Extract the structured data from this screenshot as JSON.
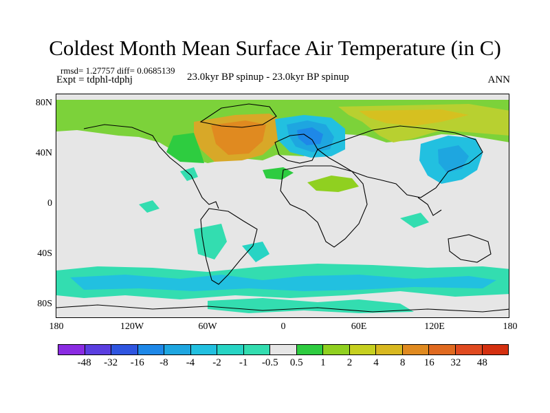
{
  "title": "Coldest Month Mean Surface Air Temperature (in C)",
  "stats": "rmsd= 1.27757 diff= 0.0685139",
  "expt": "Expt = tdphl-tdphj",
  "center_label": "23.0kyr BP spinup - 23.0kyr BP spinup",
  "period": "ANN",
  "lat_labels": [
    "80N",
    "40N",
    "0",
    "40S",
    "80S"
  ],
  "lon_labels": [
    "180",
    "120W",
    "60W",
    "0",
    "60E",
    "120E",
    "180"
  ],
  "colorbar": {
    "labels": [
      "-48",
      "-32",
      "-16",
      "-8",
      "-4",
      "-2",
      "-1",
      "-0.5",
      "0.5",
      "1",
      "2",
      "4",
      "8",
      "16",
      "32",
      "48"
    ],
    "colors": [
      "#8a2be2",
      "#5a3ee0",
      "#2f55e0",
      "#1e88e8",
      "#1ea6e0",
      "#22c0e0",
      "#27d4c4",
      "#33ddb0",
      "#e6e6e6",
      "#2ecc40",
      "#90d020",
      "#c6d020",
      "#d8b820",
      "#e08a20",
      "#e06a20",
      "#e04a20",
      "#d43010"
    ]
  }
}
